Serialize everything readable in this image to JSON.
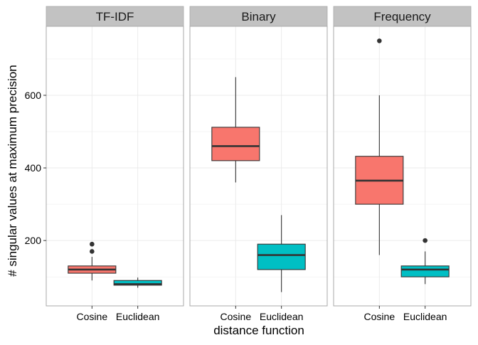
{
  "chart_data": {
    "type": "boxplot",
    "facets": [
      "TF-IDF",
      "Binary",
      "Frequency"
    ],
    "categories": [
      "Cosine",
      "Euclidean"
    ],
    "xlabel": "distance function",
    "ylabel": "# singular values at maximum precision",
    "yticks": [
      200,
      400,
      600
    ],
    "ylim": [
      20,
      790
    ],
    "grid": true,
    "legend": "none",
    "colors": {
      "Cosine": "#F8766D",
      "Euclidean": "#00BFC4",
      "strip": "#C2C2C2",
      "grid": "#EBEBEB"
    },
    "boxes": [
      {
        "facet": "TF-IDF",
        "category": "Cosine",
        "min": 90,
        "q1": 110,
        "median": 120,
        "q3": 130,
        "max": 155,
        "outliers": [
          170,
          190
        ]
      },
      {
        "facet": "TF-IDF",
        "category": "Euclidean",
        "min": 70,
        "q1": 77,
        "median": 80,
        "q3": 90,
        "max": 98,
        "outliers": []
      },
      {
        "facet": "Binary",
        "category": "Cosine",
        "min": 360,
        "q1": 420,
        "median": 460,
        "q3": 512,
        "max": 650,
        "outliers": []
      },
      {
        "facet": "Binary",
        "category": "Euclidean",
        "min": 58,
        "q1": 120,
        "median": 160,
        "q3": 190,
        "max": 270,
        "outliers": []
      },
      {
        "facet": "Frequency",
        "category": "Cosine",
        "min": 160,
        "q1": 300,
        "median": 365,
        "q3": 432,
        "max": 600,
        "outliers": [
          750
        ]
      },
      {
        "facet": "Frequency",
        "category": "Euclidean",
        "min": 80,
        "q1": 100,
        "median": 120,
        "q3": 130,
        "max": 170,
        "outliers": [
          200
        ]
      }
    ]
  }
}
